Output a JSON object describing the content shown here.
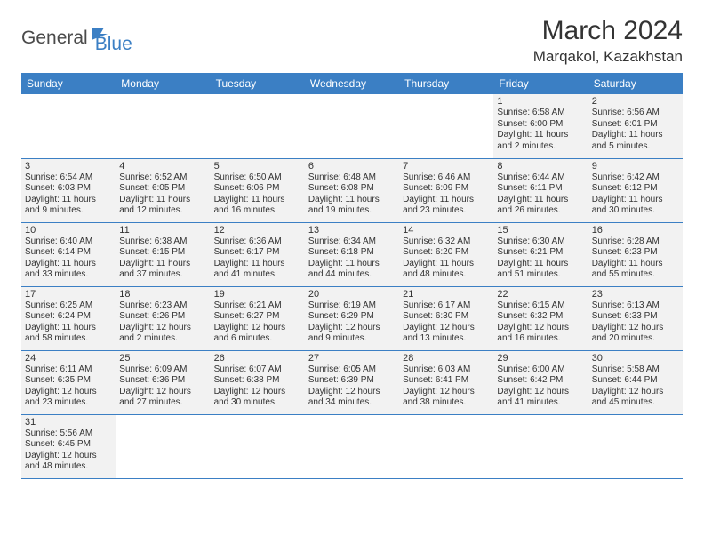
{
  "logo": {
    "part1": "General",
    "part2": "Blue"
  },
  "title": "March 2024",
  "location": "Marqakol, Kazakhstan",
  "colors": {
    "header_bg": "#3b7fc4",
    "header_text": "#ffffff",
    "cell_bg": "#f2f2f2",
    "border": "#3b7fc4",
    "text": "#333333",
    "logo_gray": "#4a4a4a",
    "logo_blue": "#3b7fc4"
  },
  "dayHeaders": [
    "Sunday",
    "Monday",
    "Tuesday",
    "Wednesday",
    "Thursday",
    "Friday",
    "Saturday"
  ],
  "weeks": [
    [
      null,
      null,
      null,
      null,
      null,
      {
        "n": "1",
        "sr": "Sunrise: 6:58 AM",
        "ss": "Sunset: 6:00 PM",
        "d1": "Daylight: 11 hours",
        "d2": "and 2 minutes."
      },
      {
        "n": "2",
        "sr": "Sunrise: 6:56 AM",
        "ss": "Sunset: 6:01 PM",
        "d1": "Daylight: 11 hours",
        "d2": "and 5 minutes."
      }
    ],
    [
      {
        "n": "3",
        "sr": "Sunrise: 6:54 AM",
        "ss": "Sunset: 6:03 PM",
        "d1": "Daylight: 11 hours",
        "d2": "and 9 minutes."
      },
      {
        "n": "4",
        "sr": "Sunrise: 6:52 AM",
        "ss": "Sunset: 6:05 PM",
        "d1": "Daylight: 11 hours",
        "d2": "and 12 minutes."
      },
      {
        "n": "5",
        "sr": "Sunrise: 6:50 AM",
        "ss": "Sunset: 6:06 PM",
        "d1": "Daylight: 11 hours",
        "d2": "and 16 minutes."
      },
      {
        "n": "6",
        "sr": "Sunrise: 6:48 AM",
        "ss": "Sunset: 6:08 PM",
        "d1": "Daylight: 11 hours",
        "d2": "and 19 minutes."
      },
      {
        "n": "7",
        "sr": "Sunrise: 6:46 AM",
        "ss": "Sunset: 6:09 PM",
        "d1": "Daylight: 11 hours",
        "d2": "and 23 minutes."
      },
      {
        "n": "8",
        "sr": "Sunrise: 6:44 AM",
        "ss": "Sunset: 6:11 PM",
        "d1": "Daylight: 11 hours",
        "d2": "and 26 minutes."
      },
      {
        "n": "9",
        "sr": "Sunrise: 6:42 AM",
        "ss": "Sunset: 6:12 PM",
        "d1": "Daylight: 11 hours",
        "d2": "and 30 minutes."
      }
    ],
    [
      {
        "n": "10",
        "sr": "Sunrise: 6:40 AM",
        "ss": "Sunset: 6:14 PM",
        "d1": "Daylight: 11 hours",
        "d2": "and 33 minutes."
      },
      {
        "n": "11",
        "sr": "Sunrise: 6:38 AM",
        "ss": "Sunset: 6:15 PM",
        "d1": "Daylight: 11 hours",
        "d2": "and 37 minutes."
      },
      {
        "n": "12",
        "sr": "Sunrise: 6:36 AM",
        "ss": "Sunset: 6:17 PM",
        "d1": "Daylight: 11 hours",
        "d2": "and 41 minutes."
      },
      {
        "n": "13",
        "sr": "Sunrise: 6:34 AM",
        "ss": "Sunset: 6:18 PM",
        "d1": "Daylight: 11 hours",
        "d2": "and 44 minutes."
      },
      {
        "n": "14",
        "sr": "Sunrise: 6:32 AM",
        "ss": "Sunset: 6:20 PM",
        "d1": "Daylight: 11 hours",
        "d2": "and 48 minutes."
      },
      {
        "n": "15",
        "sr": "Sunrise: 6:30 AM",
        "ss": "Sunset: 6:21 PM",
        "d1": "Daylight: 11 hours",
        "d2": "and 51 minutes."
      },
      {
        "n": "16",
        "sr": "Sunrise: 6:28 AM",
        "ss": "Sunset: 6:23 PM",
        "d1": "Daylight: 11 hours",
        "d2": "and 55 minutes."
      }
    ],
    [
      {
        "n": "17",
        "sr": "Sunrise: 6:25 AM",
        "ss": "Sunset: 6:24 PM",
        "d1": "Daylight: 11 hours",
        "d2": "and 58 minutes."
      },
      {
        "n": "18",
        "sr": "Sunrise: 6:23 AM",
        "ss": "Sunset: 6:26 PM",
        "d1": "Daylight: 12 hours",
        "d2": "and 2 minutes."
      },
      {
        "n": "19",
        "sr": "Sunrise: 6:21 AM",
        "ss": "Sunset: 6:27 PM",
        "d1": "Daylight: 12 hours",
        "d2": "and 6 minutes."
      },
      {
        "n": "20",
        "sr": "Sunrise: 6:19 AM",
        "ss": "Sunset: 6:29 PM",
        "d1": "Daylight: 12 hours",
        "d2": "and 9 minutes."
      },
      {
        "n": "21",
        "sr": "Sunrise: 6:17 AM",
        "ss": "Sunset: 6:30 PM",
        "d1": "Daylight: 12 hours",
        "d2": "and 13 minutes."
      },
      {
        "n": "22",
        "sr": "Sunrise: 6:15 AM",
        "ss": "Sunset: 6:32 PM",
        "d1": "Daylight: 12 hours",
        "d2": "and 16 minutes."
      },
      {
        "n": "23",
        "sr": "Sunrise: 6:13 AM",
        "ss": "Sunset: 6:33 PM",
        "d1": "Daylight: 12 hours",
        "d2": "and 20 minutes."
      }
    ],
    [
      {
        "n": "24",
        "sr": "Sunrise: 6:11 AM",
        "ss": "Sunset: 6:35 PM",
        "d1": "Daylight: 12 hours",
        "d2": "and 23 minutes."
      },
      {
        "n": "25",
        "sr": "Sunrise: 6:09 AM",
        "ss": "Sunset: 6:36 PM",
        "d1": "Daylight: 12 hours",
        "d2": "and 27 minutes."
      },
      {
        "n": "26",
        "sr": "Sunrise: 6:07 AM",
        "ss": "Sunset: 6:38 PM",
        "d1": "Daylight: 12 hours",
        "d2": "and 30 minutes."
      },
      {
        "n": "27",
        "sr": "Sunrise: 6:05 AM",
        "ss": "Sunset: 6:39 PM",
        "d1": "Daylight: 12 hours",
        "d2": "and 34 minutes."
      },
      {
        "n": "28",
        "sr": "Sunrise: 6:03 AM",
        "ss": "Sunset: 6:41 PM",
        "d1": "Daylight: 12 hours",
        "d2": "and 38 minutes."
      },
      {
        "n": "29",
        "sr": "Sunrise: 6:00 AM",
        "ss": "Sunset: 6:42 PM",
        "d1": "Daylight: 12 hours",
        "d2": "and 41 minutes."
      },
      {
        "n": "30",
        "sr": "Sunrise: 5:58 AM",
        "ss": "Sunset: 6:44 PM",
        "d1": "Daylight: 12 hours",
        "d2": "and 45 minutes."
      }
    ],
    [
      {
        "n": "31",
        "sr": "Sunrise: 5:56 AM",
        "ss": "Sunset: 6:45 PM",
        "d1": "Daylight: 12 hours",
        "d2": "and 48 minutes."
      },
      null,
      null,
      null,
      null,
      null,
      null
    ]
  ]
}
